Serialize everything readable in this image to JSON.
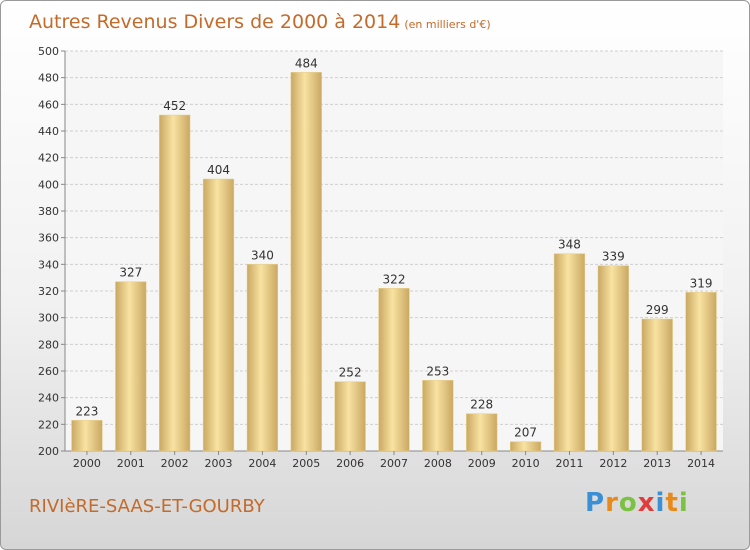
{
  "title": "Autres Revenus Divers de 2000 à 2014",
  "title_unit": "(en milliers d'€)",
  "place": "RIVIèRE-SAAS-ET-GOURBY",
  "logo": {
    "letters": [
      "P",
      "r",
      "o",
      "x",
      "i",
      "t",
      "i"
    ],
    "colors": [
      "#3a8fd6",
      "#e88a1a",
      "#7cc242",
      "#e23b3b",
      "#3a8fd6",
      "#e88a1a",
      "#7cc242"
    ]
  },
  "colors": {
    "bar_light": "#f9e2a2",
    "bar_dark": "#c9a862",
    "title": "#c46a2a",
    "grid": "#d0d0d0"
  },
  "chart_data": {
    "type": "bar",
    "categories": [
      "2000",
      "2001",
      "2002",
      "2003",
      "2004",
      "2005",
      "2006",
      "2007",
      "2008",
      "2009",
      "2010",
      "2011",
      "2012",
      "2013",
      "2014"
    ],
    "values": [
      223,
      327,
      452,
      404,
      340,
      484,
      252,
      322,
      253,
      228,
      207,
      348,
      339,
      299,
      319
    ],
    "ylim": [
      200,
      500
    ],
    "yticks": [
      200,
      220,
      240,
      260,
      280,
      300,
      320,
      340,
      360,
      380,
      400,
      420,
      440,
      460,
      480,
      500
    ],
    "grid": true
  }
}
